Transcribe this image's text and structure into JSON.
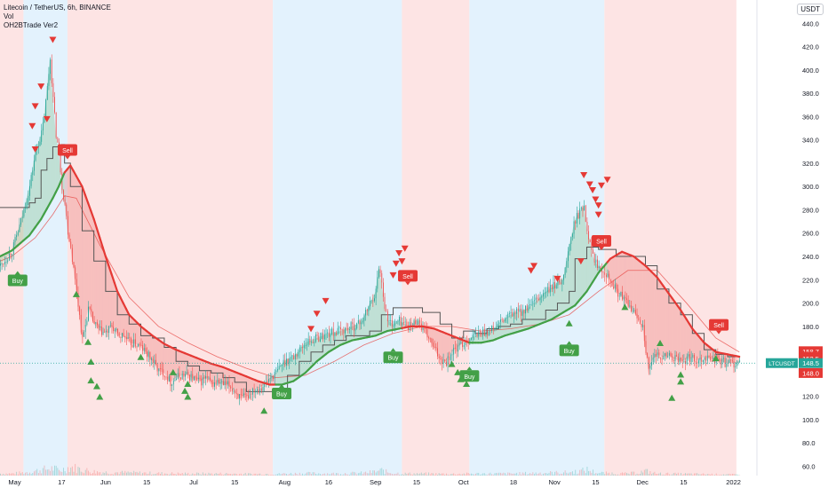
{
  "legend": {
    "line1": "Litecoin / TetherUS, 6h, BINANCE",
    "line2": "Vol",
    "line3": "OH2BTrade Ver2"
  },
  "currency_button": "USDT",
  "colors": {
    "bull_bg": "#e3f2fd",
    "bear_bg": "#fde4e4",
    "up": "#26a69a",
    "down": "#ef5350",
    "signal_green": "#43a047",
    "signal_red": "#e53935",
    "stair": "#555555",
    "ma_red": "#e53935",
    "ma_green": "#43a047"
  },
  "chart_data": {
    "type": "line",
    "title": "Litecoin / TetherUS, 6h, BINANCE",
    "ylim": [
      52,
      460
    ],
    "y_ticks": [
      60,
      80,
      100,
      120,
      140,
      160,
      180,
      200,
      220,
      240,
      260,
      280,
      300,
      320,
      340,
      360,
      380,
      400,
      420,
      440
    ],
    "x_ticks": [
      {
        "label": "May",
        "day": 1
      },
      {
        "label": "17",
        "day": 17
      },
      {
        "label": "Jun",
        "day": 32
      },
      {
        "label": "15",
        "day": 46
      },
      {
        "label": "Jul",
        "day": 62
      },
      {
        "label": "15",
        "day": 76
      },
      {
        "label": "Aug",
        "day": 93
      },
      {
        "label": "16",
        "day": 108
      },
      {
        "label": "Sep",
        "day": 124
      },
      {
        "label": "15",
        "day": 138
      },
      {
        "label": "Oct",
        "day": 154
      },
      {
        "label": "18",
        "day": 171
      },
      {
        "label": "Nov",
        "day": 185
      },
      {
        "label": "15",
        "day": 199
      },
      {
        "label": "Dec",
        "day": 215
      },
      {
        "label": "15",
        "day": 229
      },
      {
        "label": "2022",
        "day": 246
      }
    ],
    "x_range_days": [
      -4,
      254
    ],
    "background_regions": [
      {
        "from": -4,
        "to": 4,
        "trend": "bear"
      },
      {
        "from": 4,
        "to": 19,
        "trend": "bull"
      },
      {
        "from": 19,
        "to": 89,
        "trend": "bear"
      },
      {
        "from": 89,
        "to": 133,
        "trend": "bull"
      },
      {
        "from": 133,
        "to": 156,
        "trend": "bear"
      },
      {
        "from": 156,
        "to": 202,
        "trend": "bull"
      },
      {
        "from": 202,
        "to": 247,
        "trend": "bear"
      }
    ],
    "price_series": {
      "name": "LTCUSDT",
      "x": [
        -4,
        0,
        3,
        6,
        8,
        10,
        11,
        12,
        13,
        14,
        15,
        16,
        17,
        18,
        19,
        20,
        22,
        24,
        26,
        28,
        30,
        32,
        34,
        36,
        38,
        40,
        42,
        44,
        46,
        48,
        50,
        52,
        54,
        56,
        58,
        60,
        62,
        64,
        66,
        68,
        70,
        72,
        74,
        76,
        78,
        80,
        82,
        84,
        86,
        88,
        90,
        92,
        94,
        96,
        98,
        100,
        102,
        104,
        106,
        108,
        110,
        112,
        114,
        116,
        118,
        120,
        122,
        124,
        125,
        126,
        127,
        128,
        130,
        132,
        134,
        136,
        138,
        140,
        142,
        144,
        146,
        148,
        150,
        152,
        154,
        156,
        158,
        160,
        162,
        164,
        166,
        168,
        170,
        172,
        174,
        176,
        178,
        180,
        182,
        184,
        186,
        188,
        190,
        192,
        194,
        195,
        196,
        197,
        198,
        199,
        200,
        202,
        204,
        206,
        208,
        210,
        212,
        214,
        215,
        216,
        217,
        218,
        220,
        222,
        224,
        226,
        228,
        230,
        232,
        234,
        236,
        238,
        240,
        242,
        244,
        246,
        248
      ],
      "y": [
        232,
        245,
        270,
        300,
        330,
        345,
        360,
        385,
        410,
        375,
        345,
        330,
        300,
        285,
        262,
        248,
        210,
        168,
        195,
        182,
        176,
        174,
        180,
        172,
        172,
        166,
        165,
        162,
        156,
        150,
        142,
        140,
        132,
        136,
        138,
        138,
        135,
        132,
        136,
        130,
        132,
        130,
        129,
        124,
        118,
        119,
        126,
        127,
        130,
        136,
        140,
        148,
        152,
        154,
        160,
        166,
        168,
        170,
        172,
        174,
        175,
        176,
        178,
        180,
        182,
        188,
        200,
        210,
        232,
        218,
        198,
        185,
        182,
        185,
        182,
        180,
        186,
        178,
        170,
        160,
        152,
        150,
        158,
        162,
        166,
        170,
        172,
        175,
        175,
        178,
        182,
        186,
        190,
        192,
        193,
        196,
        200,
        205,
        210,
        213,
        218,
        222,
        250,
        272,
        280,
        284,
        262,
        255,
        240,
        235,
        232,
        228,
        220,
        210,
        205,
        198,
        192,
        185,
        180,
        160,
        140,
        150,
        156,
        154,
        155,
        152,
        150,
        152,
        153,
        151,
        154,
        152,
        152,
        150,
        148,
        148.5,
        148.5
      ],
      "last_value": 148.5
    },
    "ma_series": {
      "x": [
        -4,
        0,
        6,
        10,
        14,
        16,
        18,
        20,
        24,
        28,
        32,
        36,
        40,
        44,
        48,
        52,
        56,
        60,
        64,
        68,
        72,
        76,
        80,
        84,
        88,
        92,
        96,
        100,
        104,
        108,
        112,
        116,
        120,
        124,
        128,
        132,
        136,
        140,
        144,
        148,
        152,
        156,
        160,
        164,
        168,
        172,
        176,
        180,
        184,
        188,
        192,
        196,
        200,
        204,
        208,
        212,
        216,
        220,
        224,
        228,
        232,
        236,
        240,
        244,
        248
      ],
      "y": [
        240,
        245,
        258,
        272,
        290,
        300,
        312,
        318,
        300,
        272,
        240,
        210,
        190,
        180,
        172,
        165,
        160,
        156,
        152,
        148,
        145,
        141,
        137,
        133,
        130,
        130,
        133,
        140,
        150,
        158,
        164,
        168,
        170,
        172,
        176,
        178,
        180,
        180,
        178,
        174,
        170,
        166,
        166,
        168,
        172,
        175,
        178,
        182,
        186,
        192,
        198,
        210,
        226,
        238,
        244,
        240,
        232,
        222,
        208,
        194,
        178,
        166,
        158,
        156,
        154
      ],
      "bull_ranges": [
        [
          -4,
          17
        ],
        [
          90,
          132
        ],
        [
          156,
          202
        ]
      ]
    },
    "slow_ma_series": {
      "x": [
        -4,
        0,
        8,
        14,
        18,
        22,
        30,
        40,
        50,
        60,
        70,
        80,
        90,
        100,
        110,
        120,
        130,
        140,
        150,
        160,
        170,
        180,
        190,
        200,
        210,
        220,
        230,
        240,
        248
      ],
      "y": [
        236,
        240,
        256,
        276,
        292,
        290,
        250,
        205,
        180,
        166,
        154,
        144,
        136,
        138,
        150,
        164,
        174,
        180,
        180,
        176,
        178,
        182,
        190,
        210,
        228,
        228,
        200,
        170,
        158
      ]
    },
    "stair_series": {
      "x": [
        -4,
        3,
        6,
        8,
        10,
        12,
        14,
        17,
        18,
        20,
        24,
        28,
        32,
        36,
        40,
        44,
        48,
        52,
        56,
        60,
        64,
        68,
        72,
        76,
        78,
        80,
        86,
        90,
        94,
        98,
        102,
        106,
        110,
        114,
        118,
        122,
        126,
        130,
        136,
        140,
        146,
        150,
        154,
        158,
        162,
        166,
        170,
        174,
        178,
        182,
        186,
        190,
        192,
        196,
        200,
        202,
        206,
        212,
        216,
        220,
        224,
        228,
        232,
        236,
        240,
        244,
        248
      ],
      "y": [
        282,
        282,
        286,
        290,
        314,
        324,
        334,
        336,
        320,
        300,
        262,
        236,
        210,
        190,
        182,
        172,
        170,
        162,
        150,
        146,
        142,
        140,
        136,
        132,
        132,
        124,
        124,
        124,
        138,
        150,
        158,
        164,
        168,
        172,
        172,
        176,
        190,
        196,
        196,
        192,
        182,
        170,
        176,
        174,
        178,
        180,
        182,
        186,
        186,
        194,
        200,
        210,
        238,
        248,
        246,
        246,
        240,
        240,
        232,
        212,
        200,
        190,
        174,
        160,
        156,
        154,
        154
      ]
    },
    "volume_series": {
      "x": [
        0,
        4,
        8,
        10,
        12,
        14,
        16,
        18,
        20,
        24,
        28,
        32,
        40,
        50,
        60,
        70,
        80,
        90,
        100,
        110,
        120,
        124,
        126,
        128,
        130,
        134,
        140,
        150,
        160,
        170,
        180,
        190,
        194,
        196,
        198,
        200,
        210,
        214,
        216,
        218,
        220,
        230,
        240,
        248
      ],
      "y": [
        6,
        9,
        14,
        18,
        20,
        22,
        16,
        20,
        26,
        18,
        12,
        10,
        9,
        7,
        6,
        6,
        5,
        5,
        7,
        6,
        8,
        12,
        16,
        10,
        8,
        6,
        6,
        5,
        6,
        6,
        8,
        10,
        14,
        18,
        12,
        8,
        6,
        10,
        14,
        9,
        6,
        5,
        4,
        3
      ]
    },
    "volume_axis_max": 80,
    "signals": [
      {
        "type": "buy",
        "label": "Buy",
        "day": 2,
        "price": 232
      },
      {
        "type": "sell",
        "label": "Sell",
        "day": 19,
        "price": 318
      },
      {
        "type": "buy",
        "label": "Buy",
        "day": 92,
        "price": 135
      },
      {
        "type": "buy",
        "label": "Buy",
        "day": 130,
        "price": 166
      },
      {
        "type": "sell",
        "label": "Sell",
        "day": 135,
        "price": 210
      },
      {
        "type": "buy",
        "label": "Buy",
        "day": 156,
        "price": 150
      },
      {
        "type": "buy",
        "label": "Buy",
        "day": 190,
        "price": 172
      },
      {
        "type": "sell",
        "label": "Sell",
        "day": 201,
        "price": 240
      },
      {
        "type": "sell",
        "label": "Sell",
        "day": 241,
        "price": 168
      }
    ],
    "up_markers": [
      [
        22,
        215
      ],
      [
        26,
        174
      ],
      [
        27,
        157
      ],
      [
        27,
        141
      ],
      [
        29,
        136
      ],
      [
        30,
        127
      ],
      [
        44,
        161
      ],
      [
        55,
        148
      ],
      [
        60,
        127
      ],
      [
        60,
        138
      ],
      [
        59,
        132
      ],
      [
        86,
        115
      ],
      [
        150,
        155
      ],
      [
        154,
        146
      ],
      [
        152,
        148
      ],
      [
        153,
        142
      ],
      [
        155,
        138
      ],
      [
        190,
        190
      ],
      [
        209,
        204
      ],
      [
        221,
        173
      ],
      [
        225,
        126
      ],
      [
        228,
        146
      ],
      [
        228,
        140
      ],
      [
        240,
        160
      ]
    ],
    "down_markers": [
      [
        14,
        420
      ],
      [
        10,
        380
      ],
      [
        8,
        363
      ],
      [
        7,
        346
      ],
      [
        8,
        326
      ],
      [
        12,
        352
      ],
      [
        107,
        196
      ],
      [
        104,
        185
      ],
      [
        102,
        172
      ],
      [
        130,
        218
      ],
      [
        131,
        228
      ],
      [
        132,
        237
      ],
      [
        133,
        230
      ],
      [
        134,
        241
      ],
      [
        178,
        226
      ],
      [
        177,
        222
      ],
      [
        186,
        215
      ],
      [
        197,
        296
      ],
      [
        198,
        291
      ],
      [
        199,
        283
      ],
      [
        200,
        278
      ],
      [
        200,
        270
      ],
      [
        201,
        295
      ],
      [
        203,
        300
      ],
      [
        195,
        304
      ],
      [
        194,
        230
      ]
    ],
    "price_labels": [
      {
        "value": "158.7",
        "y": 158.7,
        "color": "#e53935"
      },
      {
        "value": "154.0",
        "y": 154.0,
        "color": "#e53935"
      },
      {
        "value": "152.5",
        "y": 152.5,
        "color": "#e53935"
      },
      {
        "value": "148.5",
        "y": 148.5,
        "color": "#26a69a",
        "tag": "LTCUSDT"
      },
      {
        "value": "148.0",
        "y": 140.0,
        "color": "#e53935"
      }
    ]
  }
}
